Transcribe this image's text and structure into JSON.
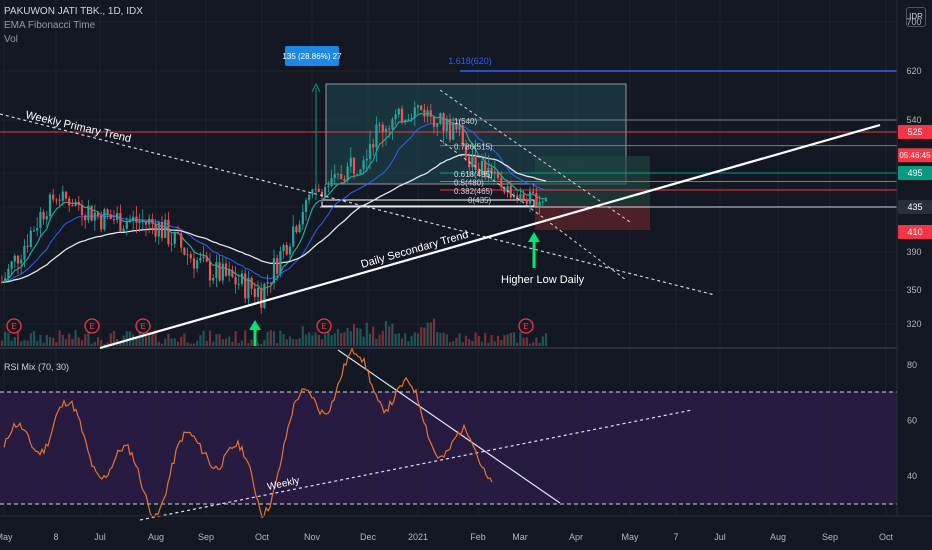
{
  "header": {
    "symbol": "PAKUWON JATI TBK., 1D, IDX",
    "indicator_1": "EMA Fibonacci Time",
    "indicator_2": "Vol",
    "currency_button": "IDR"
  },
  "annotations": {
    "measure_label": "135 (28.86%) 27",
    "fib_ext_label": "1.618(620)",
    "weekly_trend": "Weekly Primary Trend",
    "daily_trend": "Daily Secondary Trend",
    "higher_low": "Higher Low Daily",
    "rsi_weekly": "Weekly",
    "fib_levels": [
      "1(540)",
      "0.786(515)",
      "0.618(495)",
      "0.5(480)",
      "0.382(465)",
      "0(435)"
    ]
  },
  "chart_data": [
    {
      "type": "line",
      "name": "price",
      "x_ticks": [
        "May",
        "8",
        "Jul",
        "Aug",
        "Sep",
        "Oct",
        "Nov",
        "Dec",
        "2021",
        "Feb",
        "Mar",
        "Apr",
        "May",
        "7",
        "Jul",
        "Aug",
        "Sep",
        "Oct"
      ],
      "y_ticks": [
        320,
        350,
        390,
        435,
        495,
        525,
        540,
        620,
        700
      ],
      "ylim": [
        305,
        700
      ],
      "price_badges": [
        {
          "label": "525",
          "value": 525,
          "color": "#f23645"
        },
        {
          "label": "05:46:45",
          "value": 508,
          "color": "#f23645"
        },
        {
          "label": "495",
          "value": 495,
          "color": "#089981"
        },
        {
          "label": "435",
          "value": 435,
          "color": "#2a2e39"
        },
        {
          "label": "410",
          "value": 410,
          "color": "#f23645"
        }
      ],
      "close_approx": [
        {
          "x": "May",
          "y": 362
        },
        {
          "x": "8",
          "y": 455
        },
        {
          "x": "Jul",
          "y": 425
        },
        {
          "x": "Aug",
          "y": 418
        },
        {
          "x": "Sep",
          "y": 372
        },
        {
          "x": "Oct",
          "y": 348
        },
        {
          "x": "Nov",
          "y": 455
        },
        {
          "x": "Dec",
          "y": 520
        },
        {
          "x": "2021",
          "y": 560
        },
        {
          "x": "Feb",
          "y": 505
        },
        {
          "x": "Mar",
          "y": 450
        }
      ],
      "earnings_markers": [
        "May",
        "Jul",
        "Aug",
        "Nov",
        "Mar"
      ],
      "fib_ext_value": 620,
      "levels": [
        540,
        525,
        515,
        495,
        480,
        465,
        435
      ]
    },
    {
      "type": "line",
      "name": "RSI Mix (70, 30)",
      "y_ticks": [
        40,
        60,
        80
      ],
      "bands": [
        70,
        30
      ],
      "values_approx": [
        {
          "x": "May",
          "y": 46
        },
        {
          "x": "8",
          "y": 62
        },
        {
          "x": "Jul",
          "y": 48
        },
        {
          "x": "Aug",
          "y": 34
        },
        {
          "x": "Sep",
          "y": 55
        },
        {
          "x": "Oct",
          "y": 33
        },
        {
          "x": "Nov",
          "y": 70
        },
        {
          "x": "Dec",
          "y": 78
        },
        {
          "x": "2021",
          "y": 62
        },
        {
          "x": "Feb",
          "y": 44
        },
        {
          "x": "Mar",
          "y": 50
        }
      ]
    }
  ],
  "colors": {
    "bg": "#131722",
    "up": "#26a69a",
    "down": "#ef5350",
    "grid": "#1e222d",
    "rsi_line": "#e8732c",
    "rsi_band": "#2b1b47",
    "ext_line": "#2962ff"
  }
}
